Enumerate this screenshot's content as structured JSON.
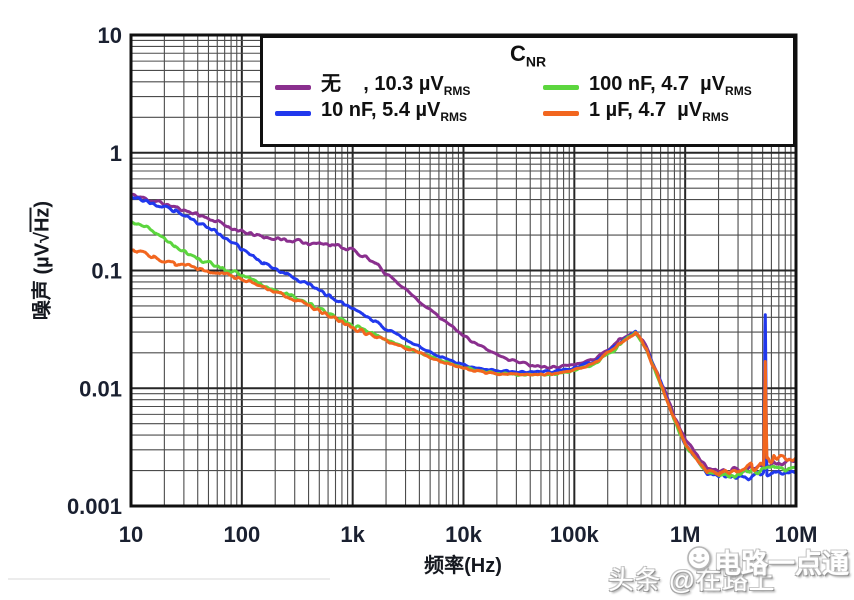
{
  "watermark": {
    "toutiao": "头条 @在路上2022T2",
    "brand": "电路一点通"
  },
  "chart_data": {
    "type": "line",
    "title": "",
    "xlabel": "频率(Hz)",
    "ylabel_prefix": "噪声 (µV√",
    "ylabel_overline": "Hz",
    "ylabel_suffix": ")",
    "x_scale": "log",
    "y_scale": "log",
    "xlim": [
      10,
      10000000
    ],
    "ylim": [
      0.001,
      10
    ],
    "grid": "major+minor",
    "x_tick_labels": [
      "10",
      "100",
      "1k",
      "10k",
      "100k",
      "1M",
      "10M"
    ],
    "y_tick_labels": [
      "10",
      "1",
      "0.1",
      "0.01",
      "0.001"
    ],
    "legend": {
      "position": "top-inside",
      "title_main": "C",
      "title_sub": "NR"
    },
    "colors": {
      "frame": "#101010",
      "grid_major": "#262626",
      "grid_minor": "#4c4c4c",
      "tick_text": "#1a2030"
    },
    "series": [
      {
        "name": "cnr-none",
        "label_main": "无    , 10.3 µV",
        "label_sub": "RMS",
        "color": "#8A2F8E",
        "points": [
          [
            10,
            0.44
          ],
          [
            16,
            0.39
          ],
          [
            25,
            0.345
          ],
          [
            40,
            0.3
          ],
          [
            63,
            0.255
          ],
          [
            100,
            0.212
          ],
          [
            158,
            0.192
          ],
          [
            251,
            0.181
          ],
          [
            398,
            0.172
          ],
          [
            631,
            0.168
          ],
          [
            1000,
            0.15
          ],
          [
            1580,
            0.115
          ],
          [
            2510,
            0.08
          ],
          [
            3980,
            0.055
          ],
          [
            6310,
            0.039
          ],
          [
            10000,
            0.028
          ],
          [
            15800,
            0.0215
          ],
          [
            25100,
            0.0178
          ],
          [
            39800,
            0.0158
          ],
          [
            63100,
            0.0152
          ],
          [
            100000,
            0.0158
          ],
          [
            158000,
            0.018
          ],
          [
            251000,
            0.0255
          ],
          [
            355000,
            0.031
          ],
          [
            447000,
            0.0225
          ],
          [
            501000,
            0.017
          ],
          [
            631000,
            0.0105
          ],
          [
            794000,
            0.0058
          ],
          [
            1000000,
            0.0037
          ],
          [
            1580000,
            0.0021
          ],
          [
            2510000,
            0.002
          ],
          [
            3980000,
            0.0021
          ],
          [
            6310000,
            0.0023
          ],
          [
            10000000,
            0.0025
          ]
        ]
      },
      {
        "name": "cnr-10nF",
        "label_main": "10 nF, 5.4 µV",
        "label_sub": "RMS",
        "color": "#2138ED",
        "points": [
          [
            10,
            0.43
          ],
          [
            16,
            0.365
          ],
          [
            25,
            0.315
          ],
          [
            40,
            0.26
          ],
          [
            63,
            0.205
          ],
          [
            100,
            0.15
          ],
          [
            158,
            0.117
          ],
          [
            251,
            0.094
          ],
          [
            398,
            0.076
          ],
          [
            631,
            0.06
          ],
          [
            1000,
            0.048
          ],
          [
            1580,
            0.037
          ],
          [
            2510,
            0.0285
          ],
          [
            3980,
            0.0225
          ],
          [
            6310,
            0.0185
          ],
          [
            10000,
            0.0158
          ],
          [
            15800,
            0.0145
          ],
          [
            25100,
            0.0138
          ],
          [
            39800,
            0.0137
          ],
          [
            63100,
            0.0139
          ],
          [
            100000,
            0.0148
          ],
          [
            158000,
            0.017
          ],
          [
            251000,
            0.024
          ],
          [
            355000,
            0.0305
          ],
          [
            447000,
            0.022
          ],
          [
            501000,
            0.0165
          ],
          [
            631000,
            0.01
          ],
          [
            794000,
            0.0055
          ],
          [
            1000000,
            0.0034
          ],
          [
            1580000,
            0.0019
          ],
          [
            2510000,
            0.00175
          ],
          [
            3980000,
            0.0018
          ],
          [
            5100000,
            0.0019
          ],
          [
            5280000,
            0.042
          ],
          [
            5460000,
            0.0019
          ],
          [
            6310000,
            0.0019
          ],
          [
            10000000,
            0.002
          ]
        ]
      },
      {
        "name": "cnr-100nF",
        "label_main": "100 nF, 4.7  µV",
        "label_sub": "RMS",
        "color": "#5CD63E",
        "points": [
          [
            10,
            0.26
          ],
          [
            16,
            0.215
          ],
          [
            25,
            0.16
          ],
          [
            40,
            0.125
          ],
          [
            63,
            0.108
          ],
          [
            100,
            0.092
          ],
          [
            158,
            0.076
          ],
          [
            251,
            0.063
          ],
          [
            398,
            0.052
          ],
          [
            631,
            0.042
          ],
          [
            1000,
            0.034
          ],
          [
            1580,
            0.0285
          ],
          [
            2510,
            0.024
          ],
          [
            3980,
            0.0203
          ],
          [
            6310,
            0.0172
          ],
          [
            10000,
            0.015
          ],
          [
            15800,
            0.0137
          ],
          [
            25100,
            0.013
          ],
          [
            39800,
            0.0129
          ],
          [
            63100,
            0.0131
          ],
          [
            100000,
            0.0141
          ],
          [
            158000,
            0.0163
          ],
          [
            251000,
            0.0232
          ],
          [
            355000,
            0.0295
          ],
          [
            447000,
            0.0213
          ],
          [
            501000,
            0.016
          ],
          [
            631000,
            0.0097
          ],
          [
            794000,
            0.0053
          ],
          [
            1000000,
            0.0033
          ],
          [
            1580000,
            0.0019
          ],
          [
            2510000,
            0.0018
          ],
          [
            3980000,
            0.002
          ],
          [
            6310000,
            0.0021
          ],
          [
            10000000,
            0.0021
          ]
        ]
      },
      {
        "name": "cnr-1uF",
        "label_main": "1 µF, 4.7  µV",
        "label_sub": "RMS",
        "color": "#F2661F",
        "points": [
          [
            10,
            0.152
          ],
          [
            16,
            0.128
          ],
          [
            25,
            0.114
          ],
          [
            40,
            0.104
          ],
          [
            63,
            0.095
          ],
          [
            100,
            0.086
          ],
          [
            158,
            0.073
          ],
          [
            251,
            0.061
          ],
          [
            398,
            0.0505
          ],
          [
            631,
            0.041
          ],
          [
            1000,
            0.033
          ],
          [
            1580,
            0.0278
          ],
          [
            2510,
            0.0235
          ],
          [
            3980,
            0.02
          ],
          [
            6310,
            0.0168
          ],
          [
            10000,
            0.0147
          ],
          [
            15800,
            0.0136
          ],
          [
            25100,
            0.0131
          ],
          [
            39800,
            0.013
          ],
          [
            63100,
            0.0132
          ],
          [
            100000,
            0.0143
          ],
          [
            158000,
            0.0166
          ],
          [
            251000,
            0.0237
          ],
          [
            355000,
            0.03
          ],
          [
            447000,
            0.0218
          ],
          [
            501000,
            0.0163
          ],
          [
            631000,
            0.0099
          ],
          [
            794000,
            0.0054
          ],
          [
            1000000,
            0.0034
          ],
          [
            1580000,
            0.00195
          ],
          [
            2510000,
            0.0019
          ],
          [
            3980000,
            0.0022
          ],
          [
            5100000,
            0.0023
          ],
          [
            5280000,
            0.017
          ],
          [
            5460000,
            0.0024
          ],
          [
            6310000,
            0.0025
          ],
          [
            10000000,
            0.0026
          ]
        ]
      }
    ]
  }
}
